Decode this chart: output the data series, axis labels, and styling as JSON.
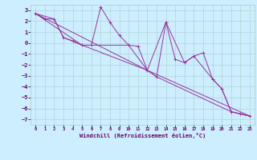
{
  "xlabel": "Windchill (Refroidissement éolien,°C)",
  "background_color": "#cceeff",
  "grid_color": "#aacccc",
  "line_color": "#993399",
  "xlim": [
    -0.5,
    23.5
  ],
  "ylim": [
    -7.5,
    3.5
  ],
  "yticks": [
    3,
    2,
    1,
    0,
    -1,
    -2,
    -3,
    -4,
    -5,
    -6,
    -7
  ],
  "xticks": [
    0,
    1,
    2,
    3,
    4,
    5,
    6,
    7,
    8,
    9,
    10,
    11,
    12,
    13,
    14,
    15,
    16,
    17,
    18,
    19,
    20,
    21,
    22,
    23
  ],
  "series1": [
    [
      0,
      2.7
    ],
    [
      1,
      2.2
    ],
    [
      2,
      2.2
    ],
    [
      3,
      0.5
    ],
    [
      4,
      0.2
    ],
    [
      5,
      -0.2
    ],
    [
      6,
      -0.2
    ],
    [
      7,
      3.3
    ],
    [
      8,
      1.9
    ],
    [
      9,
      0.7
    ],
    [
      10,
      -0.2
    ],
    [
      11,
      -0.3
    ],
    [
      12,
      -2.5
    ],
    [
      13,
      -3.1
    ],
    [
      14,
      1.9
    ],
    [
      15,
      -1.5
    ],
    [
      16,
      -1.8
    ],
    [
      17,
      -1.2
    ],
    [
      18,
      -0.9
    ],
    [
      19,
      -3.3
    ],
    [
      20,
      -4.2
    ],
    [
      21,
      -6.3
    ],
    [
      22,
      -6.5
    ],
    [
      23,
      -6.7
    ]
  ],
  "series2": [
    [
      0,
      2.7
    ],
    [
      2,
      2.2
    ],
    [
      3,
      0.5
    ],
    [
      5,
      -0.2
    ],
    [
      10,
      -0.2
    ],
    [
      12,
      -2.5
    ],
    [
      13,
      -3.1
    ],
    [
      21,
      -6.3
    ],
    [
      22,
      -6.5
    ],
    [
      23,
      -6.7
    ]
  ],
  "series3": [
    [
      0,
      2.7
    ],
    [
      12,
      -2.5
    ],
    [
      23,
      -6.7
    ]
  ],
  "series4": [
    [
      0,
      2.7
    ],
    [
      5,
      -0.2
    ],
    [
      12,
      -2.5
    ],
    [
      14,
      1.9
    ],
    [
      16,
      -1.8
    ],
    [
      17,
      -1.2
    ],
    [
      19,
      -3.3
    ],
    [
      20,
      -4.2
    ],
    [
      21,
      -6.3
    ],
    [
      22,
      -6.5
    ],
    [
      23,
      -6.7
    ]
  ]
}
